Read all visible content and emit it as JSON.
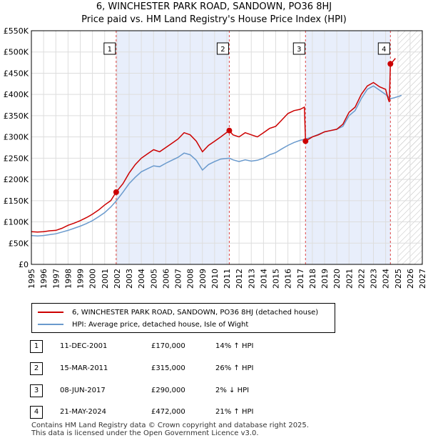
{
  "title_line1": "6, WINCHESTER PARK ROAD, SANDOWN, PO36 8HJ",
  "title_line2": "Price paid vs. HM Land Registry's House Price Index (HPI)",
  "legend": [
    {
      "label": "6, WINCHESTER PARK ROAD, SANDOWN, PO36 8HJ (detached house)",
      "color": "#cc0000"
    },
    {
      "label": "HPI: Average price, detached house, Isle of Wight",
      "color": "#6a9acd"
    }
  ],
  "transactions": [
    {
      "num": "1",
      "date": "11-DEC-2001",
      "price": "£170,000",
      "hpi": "14% ↑ HPI"
    },
    {
      "num": "2",
      "date": "15-MAR-2011",
      "price": "£315,000",
      "hpi": "26% ↑ HPI"
    },
    {
      "num": "3",
      "date": "08-JUN-2017",
      "price": "£290,000",
      "hpi": "2% ↓ HPI"
    },
    {
      "num": "4",
      "date": "21-MAY-2024",
      "price": "£472,000",
      "hpi": "21% ↑ HPI"
    }
  ],
  "footer_line1": "Contains HM Land Registry data © Crown copyright and database right 2025.",
  "footer_line2": "This data is licensed under the Open Government Licence v3.0.",
  "chart_data": {
    "type": "line",
    "title": "Price paid vs. HM Land Registry's House Price Index (HPI)",
    "xlim": [
      1995,
      2027
    ],
    "ylim": [
      0,
      550000
    ],
    "x_ticks": [
      1995,
      1996,
      1997,
      1998,
      1999,
      2000,
      2001,
      2002,
      2003,
      2004,
      2005,
      2006,
      2007,
      2008,
      2009,
      2010,
      2011,
      2012,
      2013,
      2014,
      2015,
      2016,
      2017,
      2018,
      2019,
      2020,
      2021,
      2022,
      2023,
      2024,
      2025,
      2026,
      2027
    ],
    "y_ticks": [
      {
        "value": 0,
        "label": "£0"
      },
      {
        "value": 50000,
        "label": "£50K"
      },
      {
        "value": 100000,
        "label": "£100K"
      },
      {
        "value": 150000,
        "label": "£150K"
      },
      {
        "value": 200000,
        "label": "£200K"
      },
      {
        "value": 250000,
        "label": "£250K"
      },
      {
        "value": 300000,
        "label": "£300K"
      },
      {
        "value": 350000,
        "label": "£350K"
      },
      {
        "value": 400000,
        "label": "£400K"
      },
      {
        "value": 450000,
        "label": "£450K"
      },
      {
        "value": 500000,
        "label": "£500K"
      },
      {
        "value": 550000,
        "label": "£550K"
      }
    ],
    "shaded_ranges": [
      [
        2001.94,
        2011.2
      ],
      [
        2017.44,
        2024.39
      ]
    ],
    "future_hatch_from": 2025.0,
    "sales": [
      {
        "label": "1",
        "x": 2001.94,
        "y": 170000
      },
      {
        "label": "2",
        "x": 2011.2,
        "y": 315000
      },
      {
        "label": "3",
        "x": 2017.44,
        "y": 290000
      },
      {
        "label": "4",
        "x": 2024.39,
        "y": 472000
      }
    ],
    "series": [
      {
        "name": "6, WINCHESTER PARK ROAD, SANDOWN, PO36 8HJ (detached house)",
        "color": "#cc0000",
        "points": [
          [
            1995.0,
            77000
          ],
          [
            1995.5,
            76000
          ],
          [
            1996.0,
            77000
          ],
          [
            1996.5,
            79000
          ],
          [
            1997.0,
            80000
          ],
          [
            1997.5,
            85000
          ],
          [
            1998.0,
            92000
          ],
          [
            1998.5,
            97000
          ],
          [
            1999.0,
            103000
          ],
          [
            1999.5,
            110000
          ],
          [
            2000.0,
            118000
          ],
          [
            2000.5,
            128000
          ],
          [
            2001.0,
            140000
          ],
          [
            2001.5,
            150000
          ],
          [
            2001.94,
            170000
          ],
          [
            2002.5,
            190000
          ],
          [
            2003.0,
            215000
          ],
          [
            2003.5,
            235000
          ],
          [
            2004.0,
            250000
          ],
          [
            2004.5,
            260000
          ],
          [
            2005.0,
            270000
          ],
          [
            2005.5,
            265000
          ],
          [
            2006.0,
            275000
          ],
          [
            2006.5,
            285000
          ],
          [
            2007.0,
            295000
          ],
          [
            2007.5,
            310000
          ],
          [
            2008.0,
            305000
          ],
          [
            2008.5,
            290000
          ],
          [
            2009.0,
            265000
          ],
          [
            2009.5,
            280000
          ],
          [
            2010.0,
            290000
          ],
          [
            2010.5,
            300000
          ],
          [
            2011.2,
            315000
          ],
          [
            2011.5,
            305000
          ],
          [
            2012.0,
            300000
          ],
          [
            2012.5,
            310000
          ],
          [
            2013.0,
            305000
          ],
          [
            2013.5,
            300000
          ],
          [
            2014.0,
            310000
          ],
          [
            2014.5,
            320000
          ],
          [
            2015.0,
            325000
          ],
          [
            2015.5,
            340000
          ],
          [
            2016.0,
            355000
          ],
          [
            2016.5,
            362000
          ],
          [
            2017.0,
            365000
          ],
          [
            2017.35,
            370000
          ],
          [
            2017.44,
            290000
          ],
          [
            2018.0,
            300000
          ],
          [
            2018.5,
            305000
          ],
          [
            2019.0,
            312000
          ],
          [
            2019.5,
            315000
          ],
          [
            2020.0,
            318000
          ],
          [
            2020.5,
            330000
          ],
          [
            2021.0,
            358000
          ],
          [
            2021.5,
            370000
          ],
          [
            2022.0,
            400000
          ],
          [
            2022.5,
            420000
          ],
          [
            2023.0,
            428000
          ],
          [
            2023.5,
            418000
          ],
          [
            2024.0,
            412000
          ],
          [
            2024.2,
            390000
          ],
          [
            2024.3,
            382000
          ],
          [
            2024.39,
            472000
          ],
          [
            2024.6,
            478000
          ],
          [
            2024.8,
            485000
          ]
        ]
      },
      {
        "name": "HPI: Average price, detached house, Isle of Wight",
        "color": "#6a9acd",
        "points": [
          [
            1995.0,
            68000
          ],
          [
            1995.5,
            67000
          ],
          [
            1996.0,
            68000
          ],
          [
            1996.5,
            70000
          ],
          [
            1997.0,
            72000
          ],
          [
            1997.5,
            76000
          ],
          [
            1998.0,
            80000
          ],
          [
            1998.5,
            85000
          ],
          [
            1999.0,
            90000
          ],
          [
            1999.5,
            96000
          ],
          [
            2000.0,
            103000
          ],
          [
            2000.5,
            112000
          ],
          [
            2001.0,
            122000
          ],
          [
            2001.5,
            135000
          ],
          [
            2001.94,
            149000
          ],
          [
            2002.5,
            170000
          ],
          [
            2003.0,
            190000
          ],
          [
            2003.5,
            205000
          ],
          [
            2004.0,
            218000
          ],
          [
            2004.5,
            225000
          ],
          [
            2005.0,
            232000
          ],
          [
            2005.5,
            230000
          ],
          [
            2006.0,
            238000
          ],
          [
            2006.5,
            245000
          ],
          [
            2007.0,
            252000
          ],
          [
            2007.5,
            262000
          ],
          [
            2008.0,
            258000
          ],
          [
            2008.5,
            245000
          ],
          [
            2009.0,
            222000
          ],
          [
            2009.5,
            235000
          ],
          [
            2010.0,
            242000
          ],
          [
            2010.5,
            248000
          ],
          [
            2011.2,
            250000
          ],
          [
            2011.5,
            246000
          ],
          [
            2012.0,
            242000
          ],
          [
            2012.5,
            246000
          ],
          [
            2013.0,
            243000
          ],
          [
            2013.5,
            245000
          ],
          [
            2014.0,
            250000
          ],
          [
            2014.5,
            258000
          ],
          [
            2015.0,
            263000
          ],
          [
            2015.5,
            272000
          ],
          [
            2016.0,
            280000
          ],
          [
            2016.5,
            287000
          ],
          [
            2017.0,
            292000
          ],
          [
            2017.44,
            295000
          ],
          [
            2018.0,
            300000
          ],
          [
            2018.5,
            306000
          ],
          [
            2019.0,
            312000
          ],
          [
            2019.5,
            315000
          ],
          [
            2020.0,
            318000
          ],
          [
            2020.5,
            325000
          ],
          [
            2021.0,
            350000
          ],
          [
            2021.5,
            362000
          ],
          [
            2022.0,
            390000
          ],
          [
            2022.5,
            412000
          ],
          [
            2023.0,
            420000
          ],
          [
            2023.5,
            410000
          ],
          [
            2024.0,
            400000
          ],
          [
            2024.39,
            390000
          ],
          [
            2024.7,
            392000
          ],
          [
            2025.0,
            395000
          ],
          [
            2025.3,
            398000
          ]
        ]
      }
    ]
  }
}
